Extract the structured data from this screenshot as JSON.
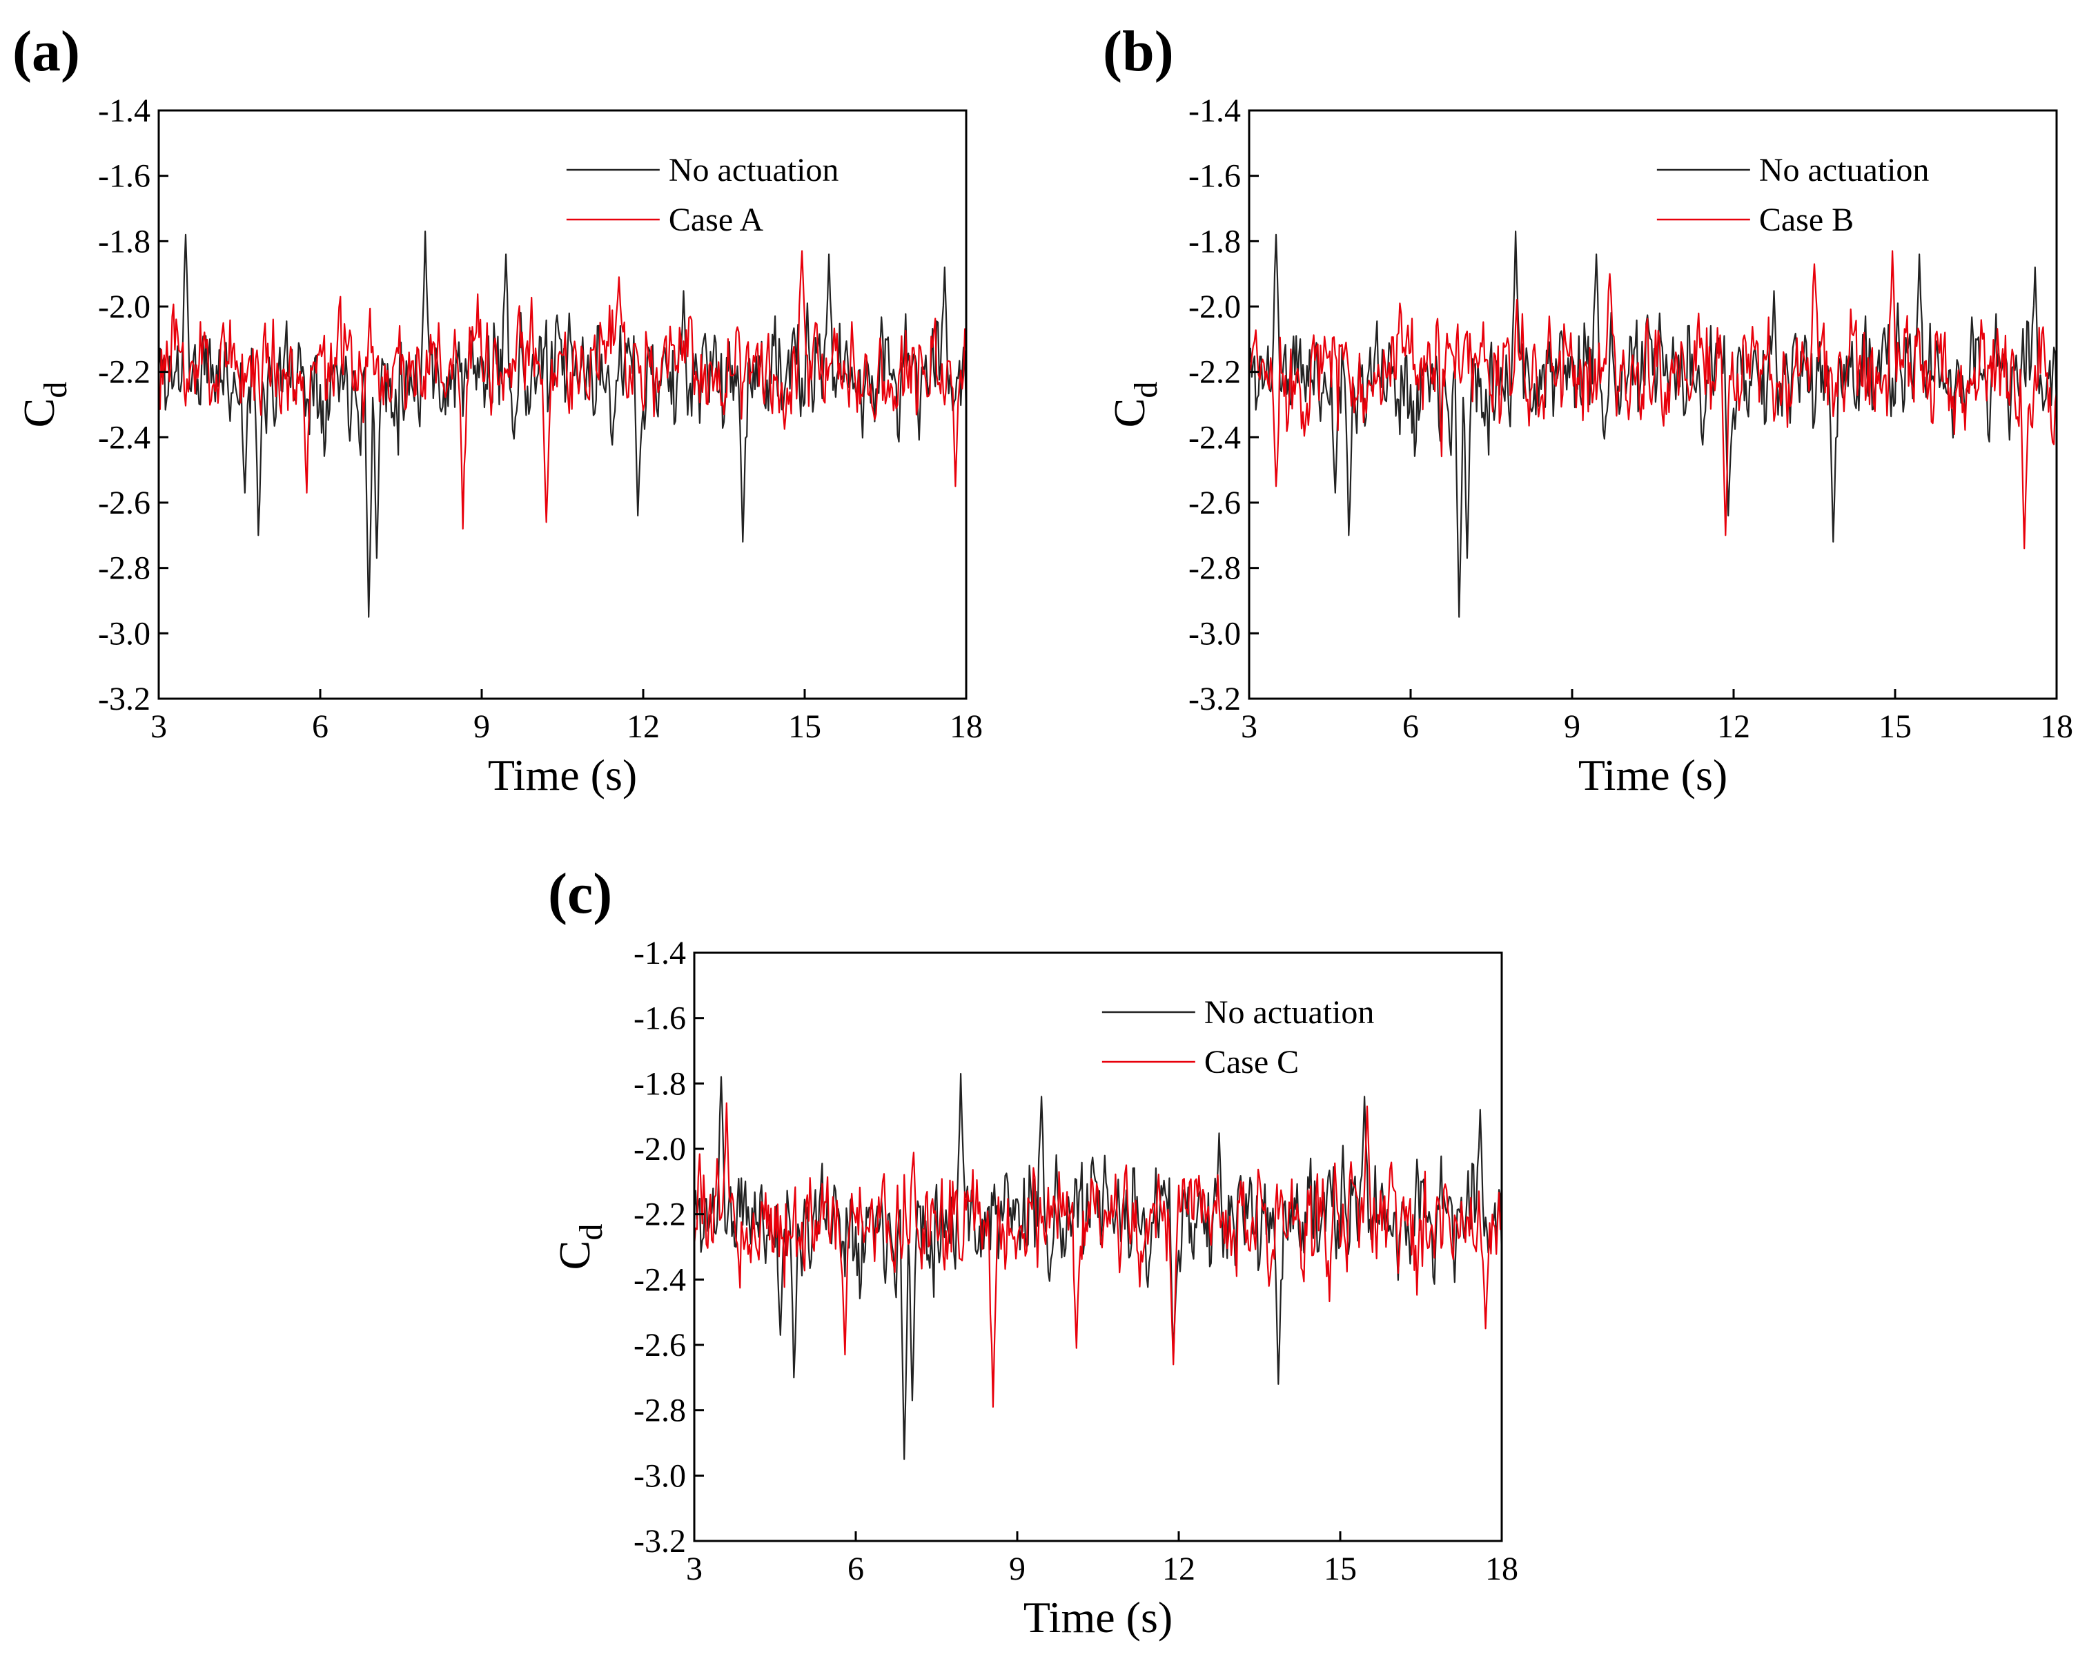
{
  "figure": {
    "series_colors": {
      "no_actuation": "#222222",
      "case": "#e8000b"
    },
    "panel_count": 3
  },
  "chart_data": [
    {
      "panel_label": "(a)",
      "type": "line",
      "xlabel": "Time (s)",
      "ylabel_main": "C",
      "ylabel_sub": "d",
      "xlim": [
        3,
        18
      ],
      "ylim": [
        -3.2,
        -1.4
      ],
      "xticks": [
        3,
        6,
        9,
        12,
        15,
        18
      ],
      "xtick_labels": [
        "3",
        "6",
        "9",
        "12",
        "15",
        "18"
      ],
      "yticks": [
        -1.4,
        -1.6,
        -1.8,
        -2.0,
        -2.2,
        -2.4,
        -2.6,
        -2.8,
        -3.0,
        -3.2
      ],
      "ytick_labels": [
        "-1.4",
        "-1.6",
        "-1.8",
        "-2.0",
        "-2.2",
        "-2.4",
        "-2.6",
        "-2.8",
        "-3.0",
        "-3.2"
      ],
      "legend_position": "top-right",
      "series": [
        {
          "name": "No actuation",
          "color": "#222222",
          "seed": 11,
          "mean": -2.21,
          "amp": 0.13,
          "dt": 0.025,
          "events": [
            [
              3.5,
              -1.78
            ],
            [
              4.6,
              -2.57
            ],
            [
              4.85,
              -2.7
            ],
            [
              6.9,
              -2.95
            ],
            [
              7.05,
              -2.77
            ],
            [
              7.95,
              -1.77
            ],
            [
              9.45,
              -1.84
            ],
            [
              11.9,
              -2.64
            ],
            [
              13.85,
              -2.72
            ],
            [
              15.45,
              -1.84
            ],
            [
              17.6,
              -1.88
            ]
          ]
        },
        {
          "name": "Case A",
          "color": "#e8000b",
          "seed": 23,
          "mean": -2.18,
          "amp": 0.12,
          "dt": 0.025,
          "events": [
            [
              4.2,
              -2.05
            ],
            [
              5.75,
              -2.57
            ],
            [
              8.65,
              -2.68
            ],
            [
              10.2,
              -2.66
            ],
            [
              11.55,
              -1.91
            ],
            [
              14.95,
              -1.83
            ],
            [
              17.8,
              -2.55
            ]
          ]
        }
      ]
    },
    {
      "panel_label": "(b)",
      "type": "line",
      "xlabel": "Time (s)",
      "ylabel_main": "C",
      "ylabel_sub": "d",
      "xlim": [
        3,
        18
      ],
      "ylim": [
        -3.2,
        -1.4
      ],
      "xticks": [
        3,
        6,
        9,
        12,
        15,
        18
      ],
      "xtick_labels": [
        "3",
        "6",
        "9",
        "12",
        "15",
        "18"
      ],
      "yticks": [
        -1.4,
        -1.6,
        -1.8,
        -2.0,
        -2.2,
        -2.4,
        -2.6,
        -2.8,
        -3.0,
        -3.2
      ],
      "ytick_labels": [
        "-1.4",
        "-1.6",
        "-1.8",
        "-2.0",
        "-2.2",
        "-2.4",
        "-2.6",
        "-2.8",
        "-3.0",
        "-3.2"
      ],
      "legend_position": "top-right",
      "series": [
        {
          "name": "No actuation",
          "color": "#222222",
          "seed": 11,
          "mean": -2.21,
          "amp": 0.13,
          "dt": 0.025,
          "events": [
            [
              3.5,
              -1.78
            ],
            [
              4.6,
              -2.57
            ],
            [
              4.85,
              -2.7
            ],
            [
              6.9,
              -2.95
            ],
            [
              7.05,
              -2.77
            ],
            [
              7.95,
              -1.77
            ],
            [
              9.45,
              -1.84
            ],
            [
              11.9,
              -2.64
            ],
            [
              13.85,
              -2.72
            ],
            [
              15.45,
              -1.84
            ],
            [
              17.6,
              -1.88
            ]
          ]
        },
        {
          "name": "Case B",
          "color": "#e8000b",
          "seed": 37,
          "mean": -2.2,
          "amp": 0.13,
          "dt": 0.025,
          "events": [
            [
              3.5,
              -2.55
            ],
            [
              9.7,
              -1.9
            ],
            [
              11.85,
              -2.7
            ],
            [
              13.5,
              -1.87
            ],
            [
              14.95,
              -1.83
            ],
            [
              17.4,
              -2.74
            ]
          ]
        }
      ]
    },
    {
      "panel_label": "(c)",
      "type": "line",
      "xlabel": "Time (s)",
      "ylabel_main": "C",
      "ylabel_sub": "d",
      "xlim": [
        3,
        18
      ],
      "ylim": [
        -3.2,
        -1.4
      ],
      "xticks": [
        3,
        6,
        9,
        12,
        15,
        18
      ],
      "xtick_labels": [
        "3",
        "6",
        "9",
        "12",
        "15",
        "18"
      ],
      "yticks": [
        -1.4,
        -1.6,
        -1.8,
        -2.0,
        -2.2,
        -2.4,
        -2.6,
        -2.8,
        -3.0,
        -3.2
      ],
      "ytick_labels": [
        "-1.4",
        "-1.6",
        "-1.8",
        "-2.0",
        "-2.2",
        "-2.4",
        "-2.6",
        "-2.8",
        "-3.0",
        "-3.2"
      ],
      "legend_position": "top-right",
      "series": [
        {
          "name": "No actuation",
          "color": "#222222",
          "seed": 11,
          "mean": -2.21,
          "amp": 0.13,
          "dt": 0.025,
          "events": [
            [
              3.5,
              -1.78
            ],
            [
              4.6,
              -2.57
            ],
            [
              4.85,
              -2.7
            ],
            [
              6.9,
              -2.95
            ],
            [
              7.05,
              -2.77
            ],
            [
              7.95,
              -1.77
            ],
            [
              9.45,
              -1.84
            ],
            [
              11.9,
              -2.64
            ],
            [
              13.85,
              -2.72
            ],
            [
              15.45,
              -1.84
            ],
            [
              17.6,
              -1.88
            ]
          ]
        },
        {
          "name": "Case C",
          "color": "#e8000b",
          "seed": 53,
          "mean": -2.22,
          "amp": 0.12,
          "dt": 0.025,
          "events": [
            [
              3.6,
              -1.86
            ],
            [
              5.8,
              -2.63
            ],
            [
              8.55,
              -2.79
            ],
            [
              10.1,
              -2.61
            ],
            [
              11.9,
              -2.66
            ],
            [
              15.5,
              -1.87
            ],
            [
              17.7,
              -2.55
            ]
          ]
        }
      ]
    }
  ]
}
